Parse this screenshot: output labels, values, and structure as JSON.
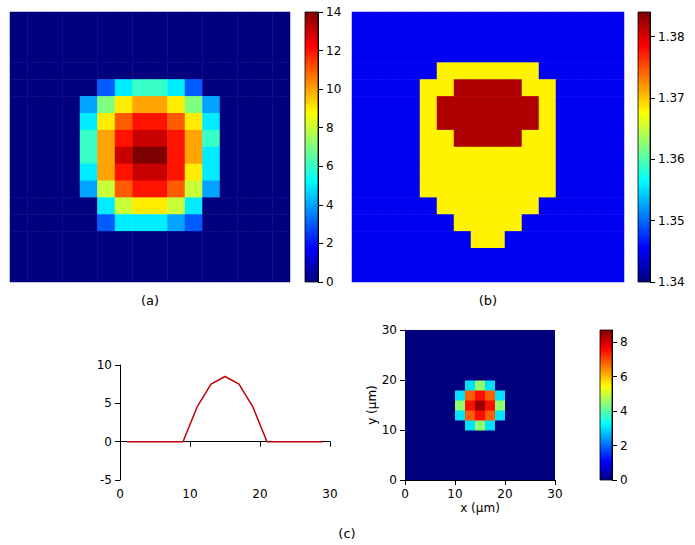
{
  "chart_data": [
    {
      "type": "heatmap",
      "panel": "(a)",
      "cells": [
        [
          0,
          0,
          0,
          0,
          0,
          0,
          0,
          0,
          0,
          0,
          0,
          0,
          0,
          0,
          0,
          0
        ],
        [
          0,
          0,
          0,
          0,
          0,
          0,
          0,
          0,
          0,
          0,
          0,
          0,
          0,
          0,
          0,
          0
        ],
        [
          0,
          0,
          0,
          0,
          0,
          0,
          0,
          0,
          0,
          0,
          0,
          0,
          0,
          0,
          0,
          0
        ],
        [
          0,
          0,
          0,
          0,
          0,
          0,
          0,
          0,
          0,
          0,
          0,
          0,
          0,
          0,
          0,
          0
        ],
        [
          0,
          0,
          0,
          0,
          0,
          3,
          5,
          6,
          6,
          5,
          3,
          0,
          0,
          0,
          0,
          0
        ],
        [
          0,
          0,
          0,
          0,
          4,
          7,
          9,
          10,
          10,
          9,
          7,
          4,
          0,
          0,
          0,
          0
        ],
        [
          0,
          0,
          0,
          0,
          5,
          9,
          11,
          12,
          12,
          11,
          9,
          5,
          0,
          0,
          0,
          0
        ],
        [
          0,
          0,
          0,
          0,
          6,
          10,
          12,
          13,
          13,
          12,
          10,
          6,
          0,
          0,
          0,
          0
        ],
        [
          0,
          0,
          0,
          0,
          6,
          10,
          13,
          14,
          14,
          12,
          10,
          5,
          0,
          0,
          0,
          0
        ],
        [
          0,
          0,
          0,
          0,
          5,
          10,
          12,
          13,
          13,
          12,
          9,
          5,
          0,
          0,
          0,
          0
        ],
        [
          0,
          0,
          0,
          0,
          4,
          8,
          11,
          12,
          12,
          11,
          8,
          4,
          0,
          0,
          0,
          0
        ],
        [
          0,
          0,
          0,
          0,
          0,
          5,
          8,
          9,
          9,
          8,
          5,
          0,
          0,
          0,
          0,
          0
        ],
        [
          0,
          0,
          0,
          0,
          0,
          3,
          5,
          5,
          5,
          4,
          3,
          0,
          0,
          0,
          0,
          0
        ],
        [
          0,
          0,
          0,
          0,
          0,
          0,
          0,
          0,
          0,
          0,
          0,
          0,
          0,
          0,
          0,
          0
        ],
        [
          0,
          0,
          0,
          0,
          0,
          0,
          0,
          0,
          0,
          0,
          0,
          0,
          0,
          0,
          0,
          0
        ],
        [
          0,
          0,
          0,
          0,
          0,
          0,
          0,
          0,
          0,
          0,
          0,
          0,
          0,
          0,
          0,
          0
        ]
      ],
      "colorbar": {
        "range": [
          0,
          14
        ],
        "ticks": [
          0,
          2,
          4,
          6,
          8,
          10,
          12,
          14
        ]
      }
    },
    {
      "type": "heatmap",
      "panel": "(b)",
      "cells": [
        [
          1.345,
          1.345,
          1.345,
          1.345,
          1.345,
          1.345,
          1.345,
          1.345,
          1.345,
          1.345,
          1.345,
          1.345,
          1.345,
          1.345,
          1.345,
          1.345
        ],
        [
          1.345,
          1.345,
          1.345,
          1.345,
          1.345,
          1.345,
          1.345,
          1.345,
          1.345,
          1.345,
          1.345,
          1.345,
          1.345,
          1.345,
          1.345,
          1.345
        ],
        [
          1.345,
          1.345,
          1.345,
          1.345,
          1.345,
          1.345,
          1.345,
          1.345,
          1.345,
          1.345,
          1.345,
          1.345,
          1.345,
          1.345,
          1.345,
          1.345
        ],
        [
          1.345,
          1.345,
          1.345,
          1.345,
          1.345,
          1.368,
          1.368,
          1.368,
          1.368,
          1.368,
          1.368,
          1.345,
          1.345,
          1.345,
          1.345,
          1.345
        ],
        [
          1.345,
          1.345,
          1.345,
          1.345,
          1.368,
          1.368,
          1.382,
          1.382,
          1.382,
          1.382,
          1.368,
          1.368,
          1.345,
          1.345,
          1.345,
          1.345
        ],
        [
          1.345,
          1.345,
          1.345,
          1.345,
          1.368,
          1.382,
          1.382,
          1.382,
          1.382,
          1.382,
          1.382,
          1.368,
          1.345,
          1.345,
          1.345,
          1.345
        ],
        [
          1.345,
          1.345,
          1.345,
          1.345,
          1.368,
          1.382,
          1.382,
          1.382,
          1.382,
          1.382,
          1.382,
          1.368,
          1.345,
          1.345,
          1.345,
          1.345
        ],
        [
          1.345,
          1.345,
          1.345,
          1.345,
          1.368,
          1.368,
          1.382,
          1.382,
          1.382,
          1.382,
          1.368,
          1.368,
          1.345,
          1.345,
          1.345,
          1.345
        ],
        [
          1.345,
          1.345,
          1.345,
          1.345,
          1.368,
          1.368,
          1.368,
          1.368,
          1.368,
          1.368,
          1.368,
          1.368,
          1.345,
          1.345,
          1.345,
          1.345
        ],
        [
          1.345,
          1.345,
          1.345,
          1.345,
          1.368,
          1.368,
          1.368,
          1.368,
          1.368,
          1.368,
          1.368,
          1.368,
          1.345,
          1.345,
          1.345,
          1.345
        ],
        [
          1.345,
          1.345,
          1.345,
          1.345,
          1.368,
          1.368,
          1.368,
          1.368,
          1.368,
          1.368,
          1.368,
          1.368,
          1.345,
          1.345,
          1.345,
          1.345
        ],
        [
          1.345,
          1.345,
          1.345,
          1.345,
          1.345,
          1.368,
          1.368,
          1.368,
          1.368,
          1.368,
          1.368,
          1.345,
          1.345,
          1.345,
          1.345,
          1.345
        ],
        [
          1.345,
          1.345,
          1.345,
          1.345,
          1.345,
          1.345,
          1.368,
          1.368,
          1.368,
          1.368,
          1.345,
          1.345,
          1.345,
          1.345,
          1.345,
          1.345
        ],
        [
          1.345,
          1.345,
          1.345,
          1.345,
          1.345,
          1.345,
          1.345,
          1.368,
          1.368,
          1.345,
          1.345,
          1.345,
          1.345,
          1.345,
          1.345,
          1.345
        ],
        [
          1.345,
          1.345,
          1.345,
          1.345,
          1.345,
          1.345,
          1.345,
          1.345,
          1.345,
          1.345,
          1.345,
          1.345,
          1.345,
          1.345,
          1.345,
          1.345
        ],
        [
          1.345,
          1.345,
          1.345,
          1.345,
          1.345,
          1.345,
          1.345,
          1.345,
          1.345,
          1.345,
          1.345,
          1.345,
          1.345,
          1.345,
          1.345,
          1.345
        ]
      ],
      "colorbar": {
        "range": [
          1.34,
          1.384
        ],
        "ticks": [
          1.34,
          1.35,
          1.36,
          1.37,
          1.38
        ]
      }
    },
    {
      "type": "surface",
      "panel": "(c)",
      "xlabel": "x (μm)",
      "ylabel": "y (μm)",
      "x": [
        1,
        3,
        5,
        7,
        9,
        11,
        13,
        15,
        17,
        19,
        21,
        23,
        25,
        27,
        29
      ],
      "y": [
        1,
        3,
        5,
        7,
        9,
        11,
        13,
        15,
        17,
        19,
        21,
        23,
        25,
        27,
        29
      ],
      "z": [
        [
          0,
          0,
          0,
          0,
          0,
          0,
          0,
          0,
          0,
          0,
          0,
          0,
          0,
          0,
          0
        ],
        [
          0,
          0,
          0,
          0,
          0,
          0,
          0,
          0,
          0,
          0,
          0,
          0,
          0,
          0,
          0
        ],
        [
          0,
          0,
          0,
          0,
          0,
          0,
          0,
          0,
          0,
          0,
          0,
          0,
          0,
          0,
          0
        ],
        [
          0,
          0,
          0,
          0,
          0,
          0,
          0,
          0,
          0,
          0,
          0,
          0,
          0,
          0,
          0
        ],
        [
          0,
          0,
          0,
          0,
          0,
          0,
          0,
          0,
          0,
          0,
          0,
          0,
          0,
          0,
          0
        ],
        [
          0,
          0,
          0,
          0,
          0,
          0,
          3,
          4.5,
          3,
          0,
          0,
          0,
          0,
          0,
          0
        ],
        [
          0,
          0,
          0,
          0,
          0,
          3,
          6.8,
          7.5,
          6.8,
          3,
          0,
          0,
          0,
          0,
          0
        ],
        [
          0,
          0,
          0,
          0,
          0,
          4.5,
          7.5,
          8.5,
          7.5,
          4.5,
          0,
          0,
          0,
          0,
          0
        ],
        [
          0,
          0,
          0,
          0,
          0,
          3,
          6.8,
          7.5,
          6.8,
          3,
          0,
          0,
          0,
          0,
          0
        ],
        [
          0,
          0,
          0,
          0,
          0,
          0,
          3,
          4.5,
          3,
          0,
          0,
          0,
          0,
          0,
          0
        ],
        [
          0,
          0,
          0,
          0,
          0,
          0,
          0,
          0,
          0,
          0,
          0,
          0,
          0,
          0,
          0
        ],
        [
          0,
          0,
          0,
          0,
          0,
          0,
          0,
          0,
          0,
          0,
          0,
          0,
          0,
          0,
          0
        ],
        [
          0,
          0,
          0,
          0,
          0,
          0,
          0,
          0,
          0,
          0,
          0,
          0,
          0,
          0,
          0
        ],
        [
          0,
          0,
          0,
          0,
          0,
          0,
          0,
          0,
          0,
          0,
          0,
          0,
          0,
          0,
          0
        ],
        [
          0,
          0,
          0,
          0,
          0,
          0,
          0,
          0,
          0,
          0,
          0,
          0,
          0,
          0,
          0
        ]
      ],
      "xlim": [
        0,
        30
      ],
      "xticks": [
        0,
        10,
        20,
        30
      ],
      "ylim": [
        0,
        30
      ],
      "yticks": [
        0,
        10,
        20,
        30
      ],
      "zlim": [
        -5,
        10
      ],
      "zticks": [
        -5,
        0,
        5,
        10
      ],
      "colorbar": {
        "range": [
          0,
          8.7
        ],
        "ticks": [
          0,
          2,
          4,
          6,
          8
        ]
      }
    }
  ]
}
